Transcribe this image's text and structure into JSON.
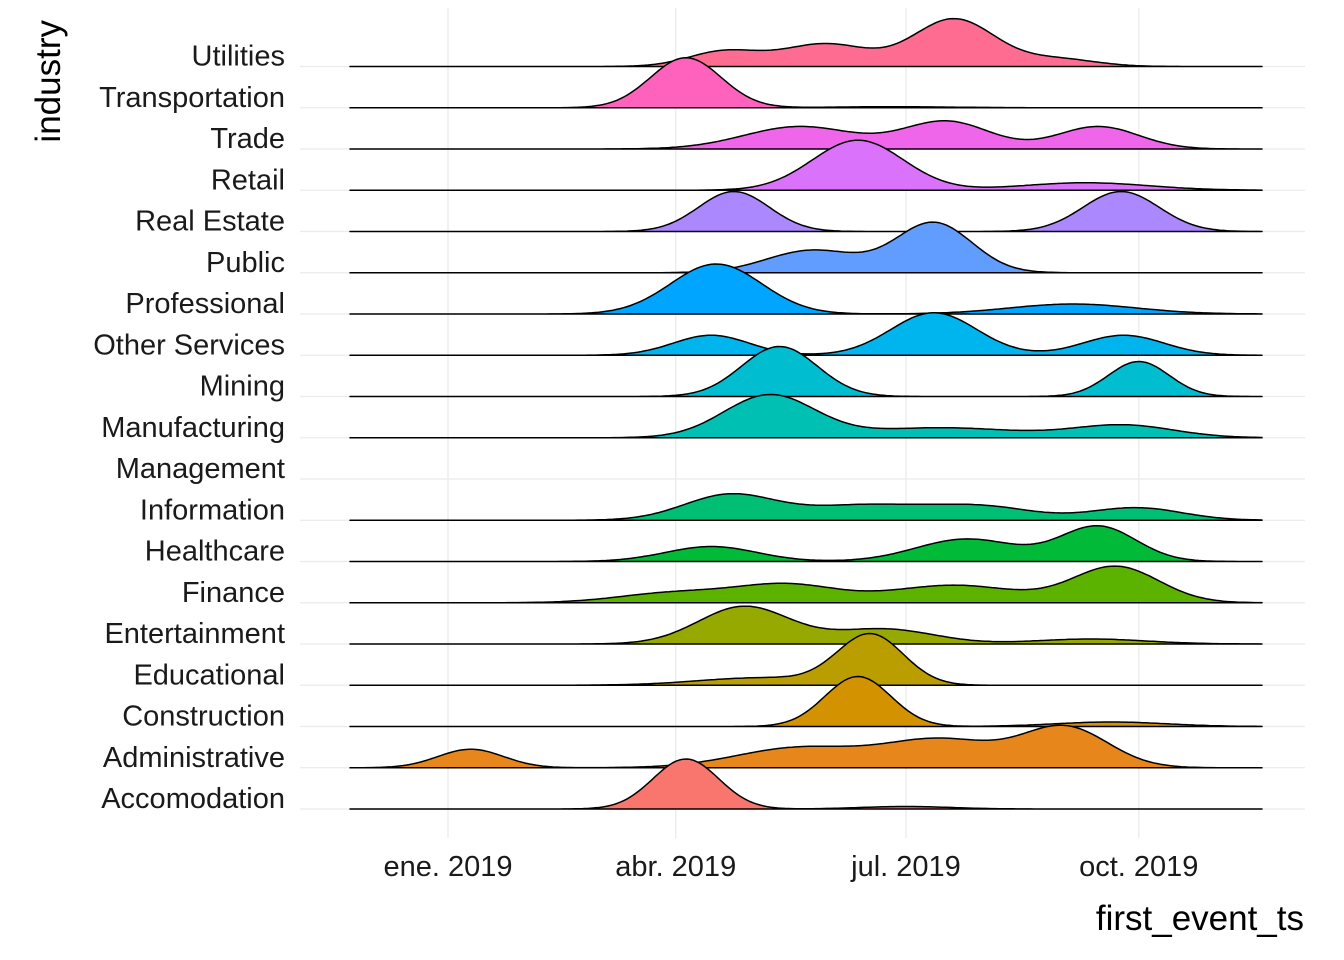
{
  "chart_data": {
    "type": "ridgeline",
    "xlabel": "first_event_ts",
    "ylabel": "industry",
    "x_range": [
      "2018-12-01",
      "2019-12-31"
    ],
    "x_ticks": [
      {
        "date": "2019-01-01",
        "label": "ene. 2019"
      },
      {
        "date": "2019-04-01",
        "label": "abr. 2019"
      },
      {
        "date": "2019-07-01",
        "label": "jul. 2019"
      },
      {
        "date": "2019-10-01",
        "label": "oct. 2019"
      }
    ],
    "grid": true,
    "legend": "none",
    "series": [
      {
        "name": "Accomodation",
        "color": "#F8766D",
        "peaks": [
          {
            "date": "2019-04-05",
            "density": 1.0,
            "sd_days": 13
          },
          {
            "date": "2019-07-01",
            "density": 0.05,
            "sd_days": 18
          }
        ]
      },
      {
        "name": "Administrative",
        "color": "#E7861B",
        "peaks": [
          {
            "date": "2019-01-10",
            "density": 0.37,
            "sd_days": 13
          },
          {
            "date": "2019-05-20",
            "density": 0.4,
            "sd_days": 25
          },
          {
            "date": "2019-07-15",
            "density": 0.55,
            "sd_days": 22
          },
          {
            "date": "2019-09-02",
            "density": 0.8,
            "sd_days": 17
          }
        ]
      },
      {
        "name": "Construction",
        "color": "#D39200",
        "peaks": [
          {
            "date": "2019-06-12",
            "density": 1.0,
            "sd_days": 13
          },
          {
            "date": "2019-09-20",
            "density": 0.09,
            "sd_days": 22
          }
        ]
      },
      {
        "name": "Educational",
        "color": "#BA9E00",
        "peaks": [
          {
            "date": "2019-05-05",
            "density": 0.15,
            "sd_days": 25
          },
          {
            "date": "2019-06-17",
            "density": 1.0,
            "sd_days": 13
          }
        ]
      },
      {
        "name": "Entertainment",
        "color": "#95A900",
        "peaks": [
          {
            "date": "2019-04-28",
            "density": 0.75,
            "sd_days": 18
          },
          {
            "date": "2019-06-22",
            "density": 0.3,
            "sd_days": 20
          },
          {
            "date": "2019-09-12",
            "density": 0.1,
            "sd_days": 22
          }
        ]
      },
      {
        "name": "Finance",
        "color": "#5BB300",
        "peaks": [
          {
            "date": "2019-04-01",
            "density": 0.2,
            "sd_days": 22
          },
          {
            "date": "2019-05-15",
            "density": 0.35,
            "sd_days": 20
          },
          {
            "date": "2019-07-20",
            "density": 0.35,
            "sd_days": 25
          },
          {
            "date": "2019-09-22",
            "density": 0.72,
            "sd_days": 17
          }
        ]
      },
      {
        "name": "Healthcare",
        "color": "#00BA38",
        "peaks": [
          {
            "date": "2019-04-15",
            "density": 0.3,
            "sd_days": 18
          },
          {
            "date": "2019-07-25",
            "density": 0.45,
            "sd_days": 20
          },
          {
            "date": "2019-09-15",
            "density": 0.7,
            "sd_days": 15
          }
        ]
      },
      {
        "name": "Information",
        "color": "#00BF74",
        "peaks": [
          {
            "date": "2019-04-22",
            "density": 0.5,
            "sd_days": 18
          },
          {
            "date": "2019-06-15",
            "density": 0.3,
            "sd_days": 25
          },
          {
            "date": "2019-08-01",
            "density": 0.25,
            "sd_days": 20
          },
          {
            "date": "2019-09-30",
            "density": 0.25,
            "sd_days": 18
          }
        ]
      },
      {
        "name": "Management",
        "color": "#00C097",
        "peaks": []
      },
      {
        "name": "Manufacturing",
        "color": "#00C0B4",
        "peaks": [
          {
            "date": "2019-05-08",
            "density": 0.85,
            "sd_days": 18
          },
          {
            "date": "2019-07-15",
            "density": 0.2,
            "sd_days": 30
          },
          {
            "date": "2019-09-25",
            "density": 0.25,
            "sd_days": 20
          }
        ]
      },
      {
        "name": "Mining",
        "color": "#00BDD0",
        "peaks": [
          {
            "date": "2019-05-12",
            "density": 1.0,
            "sd_days": 15
          },
          {
            "date": "2019-10-01",
            "density": 0.7,
            "sd_days": 12
          }
        ]
      },
      {
        "name": "Other Services",
        "color": "#00B5EE",
        "peaks": [
          {
            "date": "2019-04-15",
            "density": 0.4,
            "sd_days": 15
          },
          {
            "date": "2019-07-12",
            "density": 0.85,
            "sd_days": 17
          },
          {
            "date": "2019-09-25",
            "density": 0.4,
            "sd_days": 16
          }
        ]
      },
      {
        "name": "Professional",
        "color": "#00A5FF",
        "peaks": [
          {
            "date": "2019-04-17",
            "density": 1.0,
            "sd_days": 18
          },
          {
            "date": "2019-09-05",
            "density": 0.2,
            "sd_days": 25
          }
        ]
      },
      {
        "name": "Public",
        "color": "#619CFF",
        "peaks": [
          {
            "date": "2019-05-25",
            "density": 0.45,
            "sd_days": 18
          },
          {
            "date": "2019-07-12",
            "density": 1.0,
            "sd_days": 15
          }
        ]
      },
      {
        "name": "Real Estate",
        "color": "#AC88FF",
        "peaks": [
          {
            "date": "2019-04-24",
            "density": 0.8,
            "sd_days": 14
          },
          {
            "date": "2019-09-24",
            "density": 0.8,
            "sd_days": 15
          }
        ]
      },
      {
        "name": "Retail",
        "color": "#DB72FB",
        "peaks": [
          {
            "date": "2019-06-12",
            "density": 1.0,
            "sd_days": 18
          },
          {
            "date": "2019-09-10",
            "density": 0.15,
            "sd_days": 25
          }
        ]
      },
      {
        "name": "Trade",
        "color": "#F066EA",
        "peaks": [
          {
            "date": "2019-05-20",
            "density": 0.45,
            "sd_days": 22
          },
          {
            "date": "2019-07-17",
            "density": 0.55,
            "sd_days": 17
          },
          {
            "date": "2019-09-15",
            "density": 0.45,
            "sd_days": 16
          }
        ]
      },
      {
        "name": "Transportation",
        "color": "#FF62BC",
        "peaks": [
          {
            "date": "2019-04-05",
            "density": 1.0,
            "sd_days": 14
          },
          {
            "date": "2019-06-25",
            "density": 0.02,
            "sd_days": 25
          }
        ]
      },
      {
        "name": "Utilities",
        "color": "#FF6C91",
        "peaks": [
          {
            "date": "2019-04-20",
            "density": 0.3,
            "sd_days": 14
          },
          {
            "date": "2019-05-30",
            "density": 0.45,
            "sd_days": 17
          },
          {
            "date": "2019-07-20",
            "density": 0.95,
            "sd_days": 16
          },
          {
            "date": "2019-08-30",
            "density": 0.15,
            "sd_days": 15
          }
        ]
      }
    ]
  }
}
